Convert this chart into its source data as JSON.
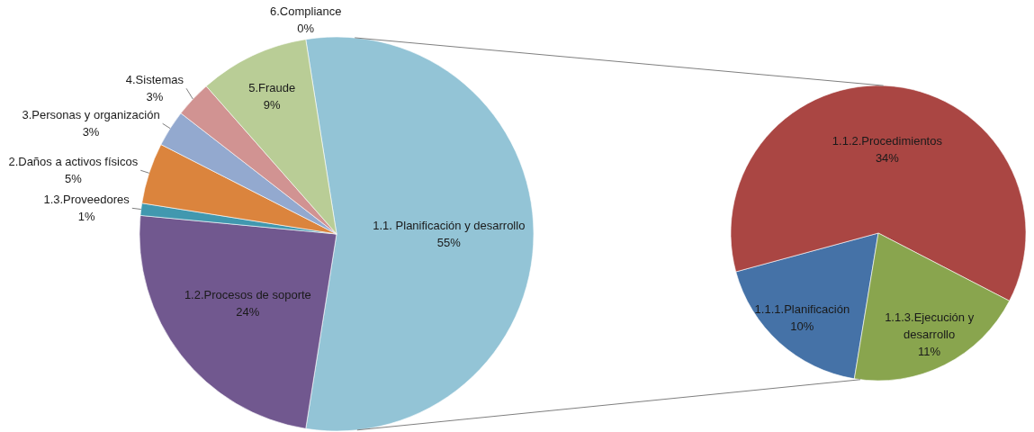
{
  "chart_data": [
    {
      "type": "pie",
      "categories": [
        "1.1. Planificación y desarrollo",
        "1.2.Procesos de soporte",
        "1.3.Proveedores",
        "2.Daños a activos físicos",
        "3.Personas y organización",
        "4.Sistemas",
        "5.Fraude",
        "6.Compliance"
      ],
      "values": [
        55,
        24,
        1,
        5,
        3,
        3,
        9,
        0
      ],
      "colors": [
        "#93c4d6",
        "#71588f",
        "#4198af",
        "#db843d",
        "#93a9cf",
        "#d19392",
        "#b9cd96",
        "#a99bbd"
      ],
      "value_labels": [
        "55%",
        "24%",
        "1%",
        "5%",
        "3%",
        "3%",
        "9%",
        "0%"
      ]
    },
    {
      "type": "pie",
      "categories": [
        "1.1.1.Planificación",
        "1.1.2.Procedimientos",
        "1.1.3.Ejecución y desarrollo"
      ],
      "values": [
        10,
        34,
        11
      ],
      "colors": [
        "#4572a7",
        "#aa4643",
        "#89a54e"
      ],
      "value_labels": [
        "10%",
        "34%",
        "11%"
      ]
    }
  ]
}
